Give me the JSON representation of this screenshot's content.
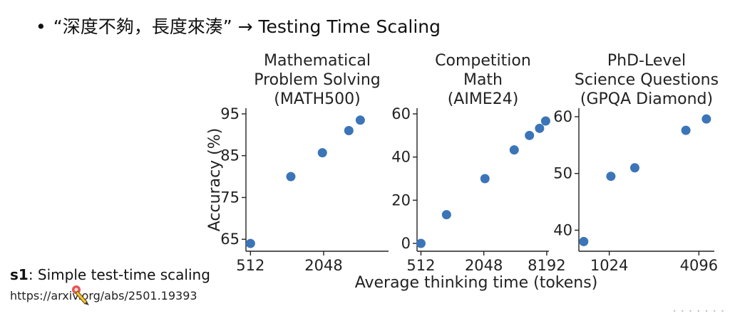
{
  "slide": {
    "bullet": "•",
    "title": "“深度不夠，長度來湊” → Testing Time Scaling"
  },
  "reference": {
    "name_bold": "s1",
    "name_rest": ": Simple test-time scaling",
    "url": "https://arxiv.org/abs/2501.19393"
  },
  "colors": {
    "marker": "#3b75b8",
    "axis": "#222222"
  },
  "chart_data": [
    {
      "type": "scatter",
      "title": "Mathematical\nProblem Solving\n(MATH500)",
      "ylabel": "Accuracy (%)",
      "xscale": "log2",
      "xlim": [
        470,
        7000
      ],
      "ylim": [
        63.5,
        95
      ],
      "yticks": [
        65,
        75,
        85,
        95
      ],
      "xticks": [
        512,
        2048
      ],
      "x": [
        512,
        1100,
        2000,
        3300,
        4100
      ],
      "y": [
        64,
        80,
        85.7,
        91,
        93.5
      ]
    },
    {
      "type": "scatter",
      "title": "Competition\nMath\n(AIME24)",
      "xscale": "log2",
      "xlim": [
        470,
        8600
      ],
      "ylim": [
        -1,
        60
      ],
      "yticks": [
        0,
        20,
        40,
        60
      ],
      "xticks": [
        512,
        2048,
        8192
      ],
      "x": [
        512,
        900,
        2100,
        4000,
        5600,
        7000,
        8000
      ],
      "y": [
        0,
        13.3,
        30,
        43.3,
        50,
        53.3,
        56.7
      ]
    },
    {
      "type": "scatter",
      "title": "PhD-Level\nScience Questions\n(GPQA Diamond)",
      "xscale": "log2",
      "xlim": [
        640,
        5200
      ],
      "ylim": [
        37.3,
        60.5
      ],
      "yticks": [
        40,
        50,
        60
      ],
      "xticks": [
        1024,
        4096
      ],
      "x": [
        690,
        1050,
        1520,
        3350,
        4600
      ],
      "y": [
        38,
        49.5,
        51,
        57.6,
        59.6
      ]
    }
  ],
  "shared_xlabel": "Average thinking time (tokens)"
}
